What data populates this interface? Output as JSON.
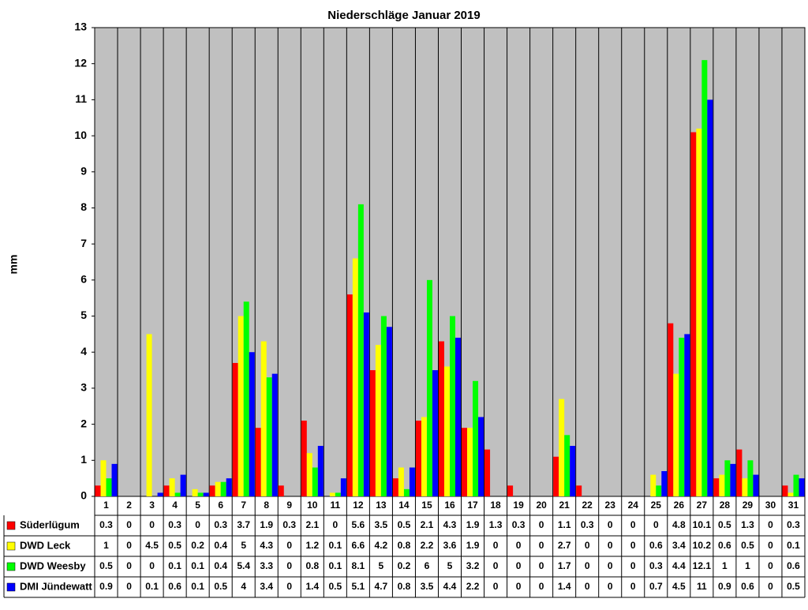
{
  "chart_data": {
    "type": "bar",
    "title": "Niederschläge Januar 2019",
    "y_label": "mm",
    "categories": [
      "1",
      "2",
      "3",
      "4",
      "5",
      "6",
      "7",
      "8",
      "9",
      "10",
      "11",
      "12",
      "13",
      "14",
      "15",
      "16",
      "17",
      "18",
      "19",
      "20",
      "21",
      "22",
      "23",
      "24",
      "25",
      "26",
      "27",
      "28",
      "29",
      "30",
      "31"
    ],
    "series": [
      {
        "name": "Süderlügum",
        "color": "#ff0000",
        "values": [
          0.3,
          0,
          0,
          0.3,
          0,
          0.3,
          3.7,
          1.9,
          0.3,
          2.1,
          0,
          5.6,
          3.5,
          0.5,
          2.1,
          4.3,
          1.9,
          1.3,
          0.3,
          0,
          1.1,
          0.3,
          0,
          0,
          0,
          4.8,
          10.1,
          0.5,
          1.3,
          0,
          0.3
        ]
      },
      {
        "name": "DWD Leck",
        "color": "#ffff00",
        "values": [
          1,
          0,
          4.5,
          0.5,
          0.2,
          0.4,
          5,
          4.3,
          0,
          1.2,
          0.1,
          6.6,
          4.2,
          0.8,
          2.2,
          3.6,
          1.9,
          0,
          0,
          0,
          2.7,
          0,
          0,
          0,
          0.6,
          3.4,
          10.2,
          0.6,
          0.5,
          0,
          0.1
        ]
      },
      {
        "name": "DWD Weesby",
        "color": "#00ff00",
        "values": [
          0.5,
          0,
          0,
          0.1,
          0.1,
          0.4,
          5.4,
          3.3,
          0,
          0.8,
          0.1,
          8.1,
          5,
          0.2,
          6,
          5,
          3.2,
          0,
          0,
          0,
          1.7,
          0,
          0,
          0,
          0.3,
          4.4,
          12.1,
          1,
          1,
          0,
          0.6
        ]
      },
      {
        "name": "DMI Jündewatt",
        "color": "#0000ff",
        "values": [
          0.9,
          0,
          0.1,
          0.6,
          0.1,
          0.5,
          4,
          3.4,
          0,
          1.4,
          0.5,
          5.1,
          4.7,
          0.8,
          3.5,
          4.4,
          2.2,
          0,
          0,
          0,
          1.4,
          0,
          0,
          0,
          0.7,
          4.5,
          11,
          0.9,
          0.6,
          0,
          0.5
        ]
      }
    ],
    "ylim": [
      0,
      13
    ],
    "yticks": [
      0,
      1,
      2,
      3,
      4,
      5,
      6,
      7,
      8,
      9,
      10,
      11,
      12,
      13
    ],
    "grid": false,
    "vertical_grid": true,
    "background": "#c0c0c0"
  }
}
